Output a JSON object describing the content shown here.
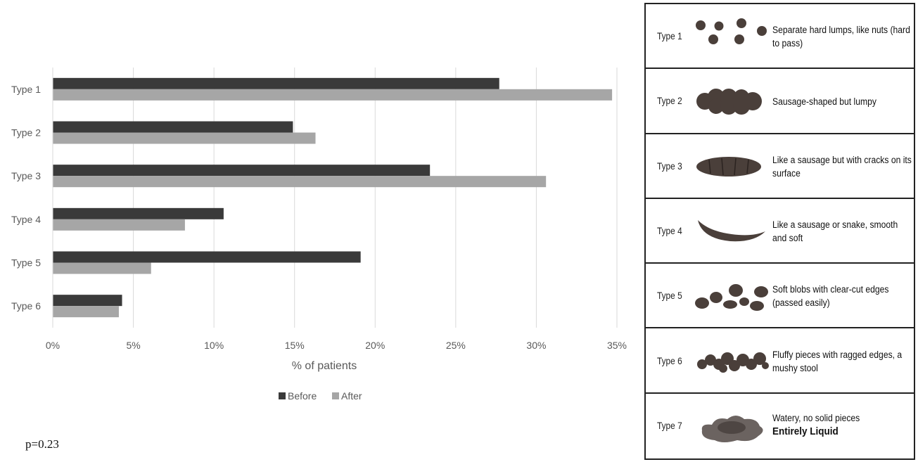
{
  "chart_data": {
    "type": "bar",
    "orientation": "horizontal",
    "categories": [
      "Type 1",
      "Type 2",
      "Type 3",
      "Type 4",
      "Type 5",
      "Type 6"
    ],
    "series": [
      {
        "name": "Before",
        "values": [
          27.7,
          14.9,
          23.4,
          10.6,
          19.1,
          4.3
        ],
        "color": "#3a3a3a"
      },
      {
        "name": "After",
        "values": [
          34.7,
          16.3,
          30.6,
          8.2,
          6.1,
          4.1
        ],
        "color": "#a6a6a6"
      }
    ],
    "xlim": [
      0,
      35
    ],
    "xticks": [
      "0%",
      "5%",
      "10%",
      "15%",
      "20%",
      "25%",
      "30%",
      "35%"
    ],
    "xtick_values": [
      0,
      5,
      10,
      15,
      20,
      25,
      30,
      35
    ],
    "xlabel": "% of patients",
    "grid": "vertical",
    "legend_position": "bottom"
  },
  "annotation": {
    "pvalue": "p=0.23"
  },
  "bristol_scale": {
    "rows": [
      {
        "label": "Type 1",
        "description": "Separate hard lumps, like nuts (hard to pass)",
        "extra": "",
        "icon": "hard-lumps-icon"
      },
      {
        "label": "Type 2",
        "description": "Sausage-shaped but lumpy",
        "extra": "",
        "icon": "lumpy-sausage-icon"
      },
      {
        "label": "Type 3",
        "description": "Like a sausage but with cracks on its surface",
        "extra": "",
        "icon": "cracked-sausage-icon"
      },
      {
        "label": "Type 4",
        "description": "Like a sausage or snake, smooth and soft",
        "extra": "",
        "icon": "smooth-snake-icon"
      },
      {
        "label": "Type 5",
        "description": "Soft blobs with clear-cut edges (passed easily)",
        "extra": "",
        "icon": "soft-blobs-icon"
      },
      {
        "label": "Type 6",
        "description": "Fluffy pieces with ragged edges, a mushy stool",
        "extra": "",
        "icon": "fluffy-pieces-icon"
      },
      {
        "label": "Type 7",
        "description": "Watery, no solid pieces",
        "extra": "Entirely Liquid",
        "icon": "watery-liquid-icon"
      }
    ],
    "colors": {
      "stool": "#4a3f3a",
      "border": "#222222"
    }
  }
}
